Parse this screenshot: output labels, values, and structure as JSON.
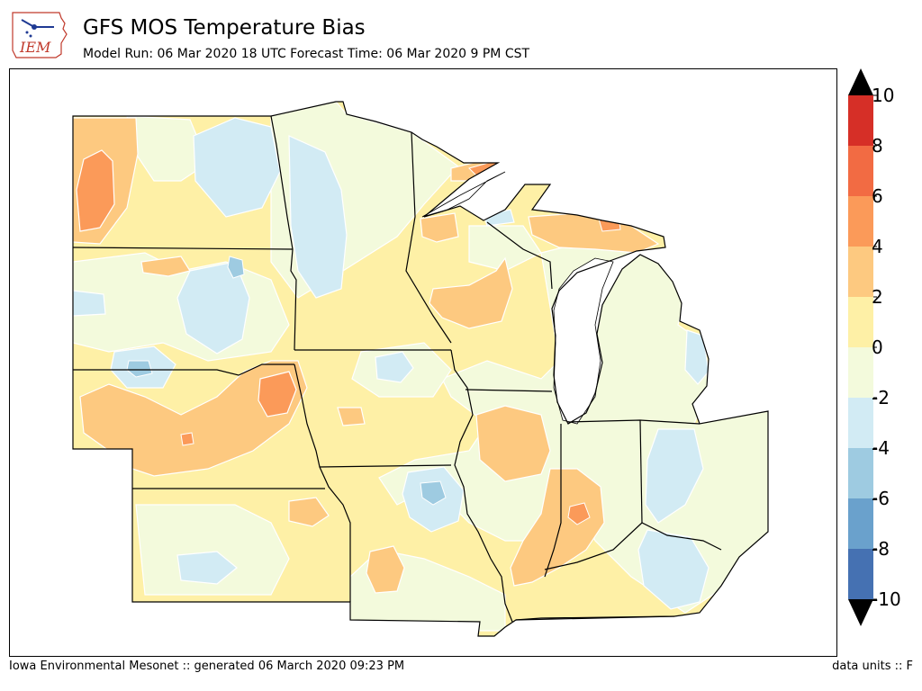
{
  "header": {
    "title": "GFS MOS Temperature Bias",
    "subtitle": "Model Run: 06 Mar 2020 18 UTC Forecast Time: 06 Mar 2020 9 PM CST",
    "logo_text": "IEM"
  },
  "footer": {
    "left": "Iowa Environmental Mesonet :: generated 06 March 2020 09:23 PM",
    "right": "data units :: F"
  },
  "legend": {
    "labels": [
      "10",
      "8",
      "6",
      "4",
      "2",
      "0",
      "-2",
      "-4",
      "-6",
      "-8",
      "-10"
    ],
    "colors_top_to_bottom": [
      "#d73027",
      "#f46d43",
      "#fdae61",
      "#fee090",
      "#ffffbf",
      "#e0f3f8",
      "#abd9e9",
      "#74add1",
      "#4575b4"
    ],
    "colors_band_pairs": [
      "#d62f27",
      "#f26b43",
      "#fb9a59",
      "#fdc980",
      "#fef0a6",
      "#f3fadc",
      "#d2ebf4",
      "#9ecbe1",
      "#6aa1cc",
      "#4571b2"
    ],
    "over_color": "#000000",
    "under_color": "#000000"
  },
  "colors": {
    "water": "#ffffff",
    "state_border": "#000000",
    "contour_line": "#ffffff"
  }
}
